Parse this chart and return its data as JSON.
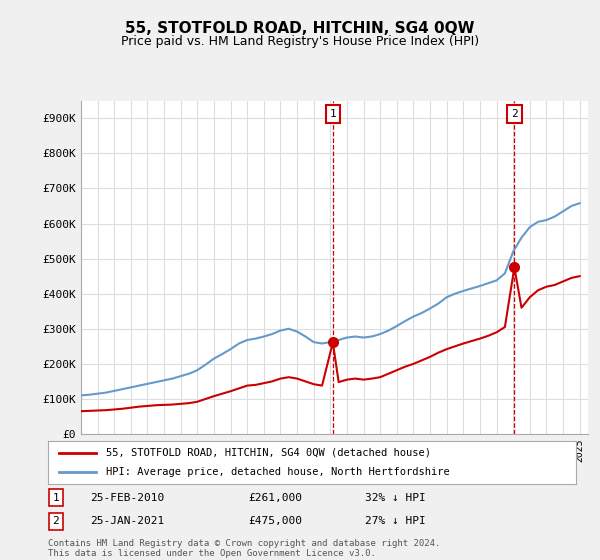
{
  "title": "55, STOTFOLD ROAD, HITCHIN, SG4 0QW",
  "subtitle": "Price paid vs. HM Land Registry's House Price Index (HPI)",
  "ylabel_ticks": [
    "£0",
    "£100K",
    "£200K",
    "£300K",
    "£400K",
    "£500K",
    "£600K",
    "£700K",
    "£800K",
    "£900K"
  ],
  "ytick_values": [
    0,
    100000,
    200000,
    300000,
    400000,
    500000,
    600000,
    700000,
    800000,
    900000
  ],
  "ylim": [
    0,
    950000
  ],
  "xlim_start": 1995.0,
  "xlim_end": 2025.5,
  "legend_label_red": "55, STOTFOLD ROAD, HITCHIN, SG4 0QW (detached house)",
  "legend_label_blue": "HPI: Average price, detached house, North Hertfordshire",
  "footer": "Contains HM Land Registry data © Crown copyright and database right 2024.\nThis data is licensed under the Open Government Licence v3.0.",
  "sale1_label": "1",
  "sale1_date": "25-FEB-2010",
  "sale1_price": "£261,000",
  "sale1_hpi": "32% ↓ HPI",
  "sale1_year": 2010.15,
  "sale1_value": 261000,
  "sale2_label": "2",
  "sale2_date": "25-JAN-2021",
  "sale2_price": "£475,000",
  "sale2_hpi": "27% ↓ HPI",
  "sale2_year": 2021.07,
  "sale2_value": 475000,
  "red_color": "#cc0000",
  "blue_color": "#6699cc",
  "dashed_vline_color": "#cc0000",
  "background_color": "#f0f0f0",
  "plot_bg_color": "#ffffff",
  "grid_color": "#dddddd",
  "hpi_years": [
    1995.0,
    1995.5,
    1996.0,
    1996.5,
    1997.0,
    1997.5,
    1998.0,
    1998.5,
    1999.0,
    1999.5,
    2000.0,
    2000.5,
    2001.0,
    2001.5,
    2002.0,
    2002.5,
    2003.0,
    2003.5,
    2004.0,
    2004.5,
    2005.0,
    2005.5,
    2006.0,
    2006.5,
    2007.0,
    2007.5,
    2008.0,
    2008.5,
    2009.0,
    2009.5,
    2010.0,
    2010.5,
    2011.0,
    2011.5,
    2012.0,
    2012.5,
    2013.0,
    2013.5,
    2014.0,
    2014.5,
    2015.0,
    2015.5,
    2016.0,
    2016.5,
    2017.0,
    2017.5,
    2018.0,
    2018.5,
    2019.0,
    2019.5,
    2020.0,
    2020.5,
    2021.0,
    2021.5,
    2022.0,
    2022.5,
    2023.0,
    2023.5,
    2024.0,
    2024.5,
    2025.0
  ],
  "hpi_values": [
    110000,
    112000,
    115000,
    118000,
    123000,
    128000,
    133000,
    138000,
    143000,
    148000,
    153000,
    158000,
    165000,
    172000,
    182000,
    198000,
    215000,
    228000,
    242000,
    258000,
    268000,
    272000,
    278000,
    285000,
    295000,
    300000,
    292000,
    278000,
    262000,
    258000,
    262000,
    268000,
    275000,
    278000,
    275000,
    278000,
    285000,
    295000,
    308000,
    322000,
    335000,
    345000,
    358000,
    372000,
    390000,
    400000,
    408000,
    415000,
    422000,
    430000,
    438000,
    458000,
    520000,
    560000,
    590000,
    605000,
    610000,
    620000,
    635000,
    650000,
    658000
  ],
  "red_years": [
    1995.0,
    1995.5,
    1996.0,
    1996.5,
    1997.0,
    1997.5,
    1998.0,
    1998.5,
    1999.0,
    1999.5,
    2000.0,
    2000.5,
    2001.0,
    2001.5,
    2002.0,
    2002.5,
    2003.0,
    2003.5,
    2004.0,
    2004.5,
    2005.0,
    2005.5,
    2006.0,
    2006.5,
    2007.0,
    2007.5,
    2008.0,
    2008.5,
    2009.0,
    2009.5,
    2010.15,
    2010.5,
    2011.0,
    2011.5,
    2012.0,
    2012.5,
    2013.0,
    2013.5,
    2014.0,
    2014.5,
    2015.0,
    2015.5,
    2016.0,
    2016.5,
    2017.0,
    2017.5,
    2018.0,
    2018.5,
    2019.0,
    2019.5,
    2020.0,
    2020.5,
    2021.07,
    2021.5,
    2022.0,
    2022.5,
    2023.0,
    2023.5,
    2024.0,
    2024.5,
    2025.0
  ],
  "red_values": [
    65000,
    66000,
    67000,
    68000,
    70000,
    72000,
    75000,
    78000,
    80000,
    82000,
    83000,
    84000,
    86000,
    88000,
    92000,
    100000,
    108000,
    115000,
    122000,
    130000,
    138000,
    140000,
    145000,
    150000,
    158000,
    162000,
    158000,
    150000,
    142000,
    138000,
    261000,
    148000,
    155000,
    158000,
    155000,
    158000,
    162000,
    172000,
    182000,
    192000,
    200000,
    210000,
    220000,
    232000,
    242000,
    250000,
    258000,
    265000,
    272000,
    280000,
    290000,
    305000,
    475000,
    360000,
    390000,
    410000,
    420000,
    425000,
    435000,
    445000,
    450000
  ]
}
